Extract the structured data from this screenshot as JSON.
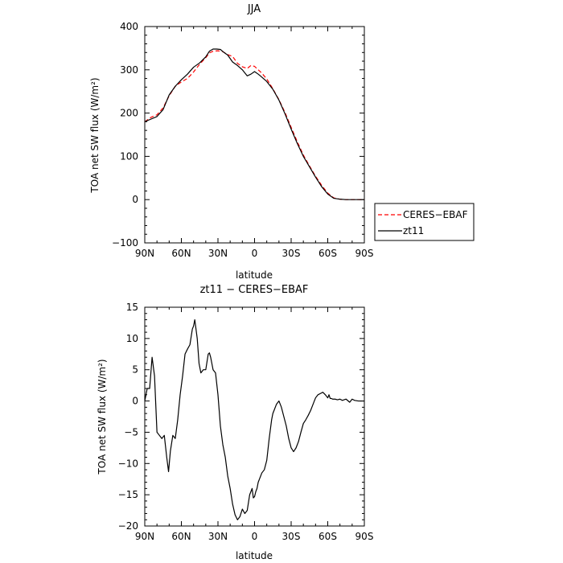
{
  "chart_data": [
    {
      "type": "line",
      "title": "JJA",
      "xlabel": "latitude",
      "ylabel": "TOA net SW flux (W/m²)",
      "xlim": [
        90,
        -90
      ],
      "ylim": [
        -100,
        400
      ],
      "xticks": [
        90,
        60,
        30,
        0,
        -30,
        -60,
        -90
      ],
      "xtick_labels": [
        "90N",
        "60N",
        "30N",
        "0",
        "30S",
        "60S",
        "90S"
      ],
      "yticks": [
        -100,
        0,
        100,
        200,
        300,
        400
      ],
      "ytick_labels": [
        "−100",
        "0",
        "100",
        "200",
        "300",
        "400"
      ],
      "legend": "outside-right",
      "series": [
        {
          "name": "CERES−EBAF",
          "color": "#ff0000",
          "dash": "dashed",
          "x": [
            90,
            85,
            80,
            75,
            70,
            65,
            60,
            55,
            50,
            45,
            40,
            37,
            34,
            30,
            26,
            22,
            18,
            14,
            10,
            6,
            3,
            0,
            -3,
            -6,
            -10,
            -15,
            -20,
            -25,
            -30,
            -35,
            -40,
            -45,
            -50,
            -55,
            -60,
            -65,
            -70,
            -75,
            -80,
            -85,
            -90
          ],
          "y": [
            180,
            190,
            196,
            212,
            240,
            262,
            272,
            280,
            295,
            313,
            328,
            339,
            343,
            344,
            342,
            335,
            331,
            315,
            307,
            303,
            310,
            308,
            300,
            292,
            279,
            256,
            231,
            201,
            167,
            134,
            103,
            78,
            54,
            33,
            15,
            4,
            1,
            0,
            0,
            0,
            0
          ]
        },
        {
          "name": "zt11",
          "color": "#000000",
          "dash": "solid",
          "x": [
            90,
            85,
            80,
            75,
            70,
            65,
            60,
            55,
            50,
            45,
            40,
            37,
            34,
            31,
            28,
            25,
            22,
            18,
            14,
            10,
            6,
            3,
            0,
            -3,
            -6,
            -10,
            -15,
            -20,
            -25,
            -30,
            -35,
            -40,
            -45,
            -50,
            -55,
            -60,
            -65,
            -70,
            -75,
            -80,
            -85,
            -90
          ],
          "y": [
            180,
            186,
            192,
            208,
            242,
            262,
            277,
            290,
            306,
            316,
            330,
            343,
            348,
            348,
            347,
            340,
            334,
            318,
            310,
            300,
            286,
            290,
            296,
            290,
            283,
            273,
            255,
            230,
            198,
            163,
            130,
            100,
            76,
            52,
            30,
            13,
            3,
            1,
            0,
            0,
            0,
            0
          ]
        }
      ]
    },
    {
      "type": "line",
      "title": "zt11 − CERES−EBAF",
      "xlabel": "latitude",
      "ylabel": "TOA net SW flux (W/m²)",
      "xlim": [
        90,
        -90
      ],
      "ylim": [
        -20,
        15
      ],
      "xticks": [
        90,
        60,
        30,
        0,
        -30,
        -60,
        -90
      ],
      "xtick_labels": [
        "90N",
        "60N",
        "30N",
        "0",
        "30S",
        "60S",
        "90S"
      ],
      "yticks": [
        -20,
        -15,
        -10,
        -5,
        0,
        5,
        10,
        15
      ],
      "ytick_labels": [
        "−20",
        "−15",
        "−10",
        "−5",
        "0",
        "5",
        "10",
        "15"
      ],
      "series": [
        {
          "color": "#000000",
          "dash": "solid",
          "x": [
            90,
            88,
            86,
            84,
            82,
            80,
            78,
            76,
            74,
            72,
            70.5,
            69,
            67,
            65,
            63,
            61,
            59,
            57,
            55,
            53,
            51,
            50,
            49,
            47,
            45.5,
            44,
            42,
            40,
            38,
            37,
            36,
            35,
            34,
            32,
            30,
            28,
            26,
            24,
            22,
            20,
            18,
            16,
            14,
            12,
            10,
            8,
            6,
            4,
            2,
            1,
            0,
            -1,
            -2,
            -3,
            -4,
            -5,
            -6,
            -8,
            -10,
            -12,
            -14,
            -15,
            -16,
            -18,
            -20,
            -22,
            -24,
            -26,
            -28,
            -30,
            -32,
            -34,
            -36,
            -38,
            -40,
            -42,
            -44,
            -46,
            -48,
            -50,
            -52,
            -54,
            -56,
            -58,
            -60,
            -61,
            -62,
            -63,
            -64,
            -66,
            -68,
            -70,
            -72,
            -75,
            -78,
            -80,
            -82,
            -85,
            -88,
            -90
          ],
          "y": [
            0,
            2,
            2,
            7,
            4,
            -5,
            -5.5,
            -6,
            -5.5,
            -9,
            -11.3,
            -8,
            -5.5,
            -6,
            -3,
            1,
            4,
            7.5,
            8.3,
            9,
            11.5,
            12,
            13,
            10,
            6,
            4.5,
            5,
            5,
            7.5,
            7.7,
            7,
            6,
            5,
            4.5,
            1,
            -4,
            -7,
            -9,
            -12,
            -14,
            -16.5,
            -18.2,
            -19,
            -18.5,
            -17.3,
            -18,
            -17.5,
            -15,
            -14,
            -15.5,
            -15.3,
            -14.5,
            -14,
            -13,
            -12.5,
            -12,
            -11.5,
            -11,
            -9.5,
            -6,
            -3,
            -2,
            -1.5,
            -0.5,
            0,
            -1,
            -2.5,
            -4,
            -6,
            -7.5,
            -8.1,
            -7.5,
            -6.5,
            -5,
            -3.6,
            -3,
            -2.3,
            -1.5,
            -0.5,
            0.5,
            1,
            1.2,
            1.4,
            1.0,
            0.5,
            1.0,
            0.4,
            0.4,
            0.3,
            0.3,
            0.2,
            0.3,
            0.1,
            0.3,
            -0.2,
            0.3,
            0.1,
            0,
            0,
            0
          ]
        }
      ]
    }
  ]
}
